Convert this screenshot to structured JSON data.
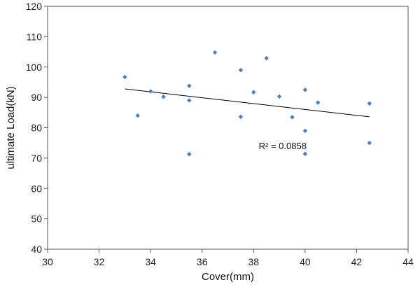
{
  "chart_data": {
    "type": "scatter",
    "xlabel": "Cover(mm)",
    "ylabel": "ultimate Load(kN)",
    "xlim": [
      30,
      44
    ],
    "ylim": [
      40,
      120
    ],
    "x_ticks": [
      30,
      32,
      34,
      36,
      38,
      40,
      42,
      44
    ],
    "y_ticks": [
      40,
      50,
      60,
      70,
      80,
      90,
      100,
      110,
      120
    ],
    "grid": false,
    "legend": "none",
    "series": [
      {
        "marker_color": "#4a7ebb",
        "points": [
          {
            "x": 33.0,
            "y": 96.7
          },
          {
            "x": 33.5,
            "y": 84.0
          },
          {
            "x": 34.0,
            "y": 92.0
          },
          {
            "x": 34.5,
            "y": 90.2
          },
          {
            "x": 35.5,
            "y": 93.8
          },
          {
            "x": 35.5,
            "y": 89.0
          },
          {
            "x": 35.5,
            "y": 71.3
          },
          {
            "x": 36.5,
            "y": 104.8
          },
          {
            "x": 37.5,
            "y": 99.0
          },
          {
            "x": 37.5,
            "y": 83.6
          },
          {
            "x": 38.0,
            "y": 91.7
          },
          {
            "x": 38.5,
            "y": 102.9
          },
          {
            "x": 39.0,
            "y": 90.3
          },
          {
            "x": 39.5,
            "y": 83.5
          },
          {
            "x": 40.0,
            "y": 92.5
          },
          {
            "x": 40.0,
            "y": 79.0
          },
          {
            "x": 40.0,
            "y": 71.4
          },
          {
            "x": 40.5,
            "y": 88.3
          },
          {
            "x": 42.5,
            "y": 88.0
          },
          {
            "x": 42.5,
            "y": 75.0
          }
        ]
      }
    ],
    "trendline": {
      "x_start": 33.0,
      "y_start": 92.8,
      "x_end": 42.5,
      "y_end": 83.6,
      "color": "#000000"
    },
    "annotation": {
      "text": "R² = 0.0858",
      "x": 38.2,
      "y": 73.0
    }
  }
}
